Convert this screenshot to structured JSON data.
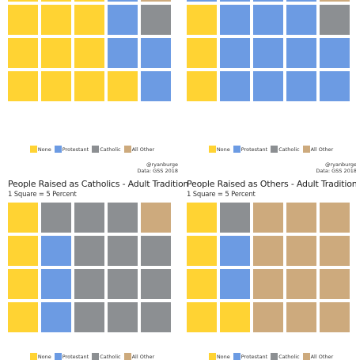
{
  "colors": {
    "None": "#FFD333",
    "Protestant": "#6C9BE3",
    "Catholic": "#8C8F92",
    "All Other": "#CDAA7D"
  },
  "legend": [
    "None",
    "Protestant",
    "Catholic",
    "All Other"
  ],
  "credit": "@ryanburge",
  "source": "Data: GSS 2018",
  "chart_data": [
    {
      "type": "waffle",
      "title": "",
      "subtitle": "",
      "rows": [
        [
          "None",
          "None",
          "None",
          "Protestant",
          "All Other"
        ],
        [
          "None",
          "None",
          "None",
          "Protestant",
          "Catholic"
        ],
        [
          "None",
          "None",
          "None",
          "Protestant",
          "Protestant"
        ],
        [
          "None",
          "None",
          "None",
          "None",
          "Protestant"
        ]
      ]
    },
    {
      "type": "waffle",
      "title": "",
      "subtitle": "",
      "rows": [
        [
          "Protestant",
          "Protestant",
          "Protestant",
          "Protestant",
          "All Other"
        ],
        [
          "None",
          "Protestant",
          "Protestant",
          "Protestant",
          "Catholic"
        ],
        [
          "None",
          "Protestant",
          "Protestant",
          "Protestant",
          "Protestant"
        ],
        [
          "None",
          "Protestant",
          "Protestant",
          "Protestant",
          "Protestant"
        ]
      ]
    },
    {
      "type": "waffle",
      "title": "People Raised as Catholics - Adult Tradition",
      "subtitle": "1 Square = 5 Percent",
      "rows": [
        [
          "None",
          "Catholic",
          "Catholic",
          "Catholic",
          "All Other"
        ],
        [
          "None",
          "Protestant",
          "Catholic",
          "Catholic",
          "Catholic"
        ],
        [
          "None",
          "Protestant",
          "Catholic",
          "Catholic",
          "Catholic"
        ],
        [
          "None",
          "Protestant",
          "Catholic",
          "Catholic",
          "Catholic"
        ]
      ]
    },
    {
      "type": "waffle",
      "title": "People Raised as Others - Adult Tradition",
      "subtitle": "1 Square = 5 Percent",
      "rows": [
        [
          "None",
          "Catholic",
          "All Other",
          "All Other",
          "All Other"
        ],
        [
          "None",
          "Protestant",
          "All Other",
          "All Other",
          "All Other"
        ],
        [
          "None",
          "Protestant",
          "All Other",
          "All Other",
          "All Other"
        ],
        [
          "None",
          "None",
          "All Other",
          "All Other",
          "All Other"
        ]
      ]
    }
  ]
}
